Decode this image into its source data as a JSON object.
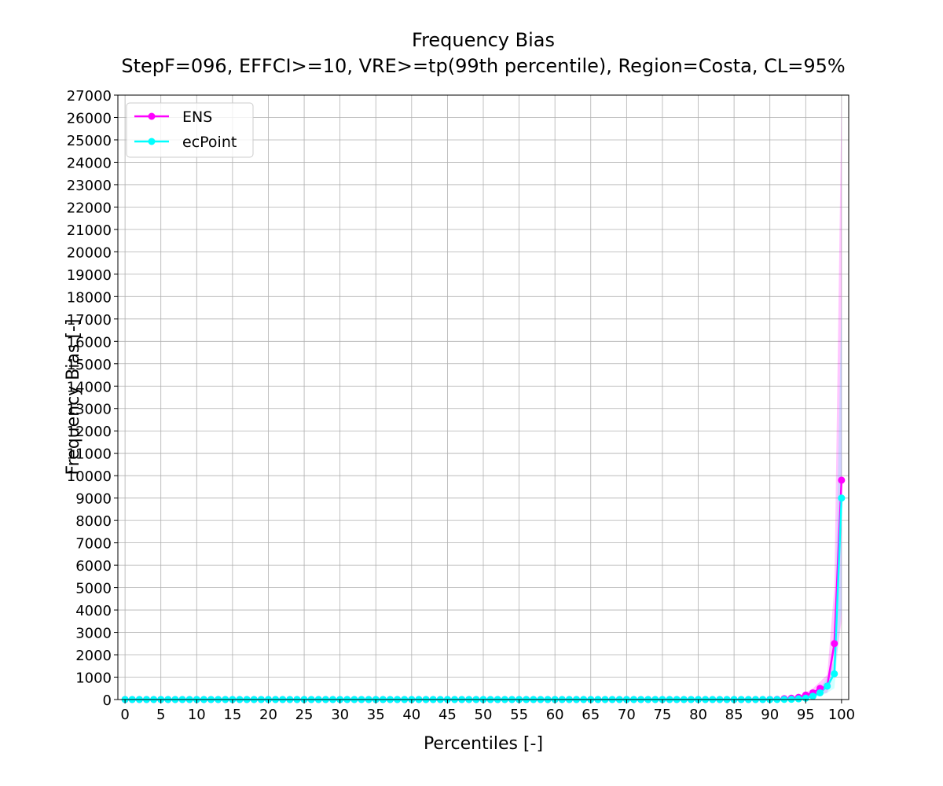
{
  "chart_data": {
    "type": "line",
    "title": "Frequency Bias",
    "subtitle": "StepF=096, EFFCI>=10, VRE>=tp(99th percentile), Region=Costa, CL=95%",
    "xlabel": "Percentiles [-]",
    "ylabel": "Frequency Bias [-]",
    "xlim": [
      -1,
      101
    ],
    "ylim": [
      0,
      27000
    ],
    "x_ticks": [
      0,
      5,
      10,
      15,
      20,
      25,
      30,
      35,
      40,
      45,
      50,
      55,
      60,
      65,
      70,
      75,
      80,
      85,
      90,
      95,
      100
    ],
    "y_ticks": [
      0,
      1000,
      2000,
      3000,
      4000,
      5000,
      6000,
      7000,
      8000,
      9000,
      10000,
      11000,
      12000,
      13000,
      14000,
      15000,
      16000,
      17000,
      18000,
      19000,
      20000,
      21000,
      22000,
      23000,
      24000,
      25000,
      26000,
      27000
    ],
    "grid": true,
    "legend_position": "top-left",
    "x": [
      0,
      1,
      2,
      3,
      4,
      5,
      6,
      7,
      8,
      9,
      10,
      11,
      12,
      13,
      14,
      15,
      16,
      17,
      18,
      19,
      20,
      21,
      22,
      23,
      24,
      25,
      26,
      27,
      28,
      29,
      30,
      31,
      32,
      33,
      34,
      35,
      36,
      37,
      38,
      39,
      40,
      41,
      42,
      43,
      44,
      45,
      46,
      47,
      48,
      49,
      50,
      51,
      52,
      53,
      54,
      55,
      56,
      57,
      58,
      59,
      60,
      61,
      62,
      63,
      64,
      65,
      66,
      67,
      68,
      69,
      70,
      71,
      72,
      73,
      74,
      75,
      76,
      77,
      78,
      79,
      80,
      81,
      82,
      83,
      84,
      85,
      86,
      87,
      88,
      89,
      90,
      91,
      92,
      93,
      94,
      95,
      96,
      97,
      98,
      99,
      100
    ],
    "series": [
      {
        "name": "ENS",
        "color": "#ff00ff",
        "marker": "circle",
        "values": [
          1,
          1,
          1,
          1,
          1,
          1,
          1,
          1,
          1,
          1,
          1,
          1,
          1,
          1,
          1,
          1,
          1,
          1,
          1,
          1,
          1,
          1,
          1,
          1,
          1,
          1,
          1,
          1,
          1,
          1,
          1,
          1,
          1,
          1,
          1,
          1,
          1,
          1,
          1,
          1,
          1,
          1,
          1,
          1,
          1,
          1,
          1,
          1,
          1,
          1,
          1,
          1,
          1,
          1,
          1,
          1,
          1,
          1,
          1,
          1,
          1,
          1,
          1,
          1,
          1,
          1,
          1,
          1,
          1,
          1,
          1,
          1,
          1,
          1,
          1,
          1,
          1,
          1,
          1,
          1,
          1,
          1,
          1,
          1,
          1,
          1,
          1,
          1,
          1,
          2,
          5,
          10,
          40,
          60,
          100,
          200,
          300,
          500,
          600,
          2500,
          9800
        ],
        "ci_lower": [
          1,
          1,
          1,
          1,
          1,
          1,
          1,
          1,
          1,
          1,
          1,
          1,
          1,
          1,
          1,
          1,
          1,
          1,
          1,
          1,
          1,
          1,
          1,
          1,
          1,
          1,
          1,
          1,
          1,
          1,
          1,
          1,
          1,
          1,
          1,
          1,
          1,
          1,
          1,
          1,
          1,
          1,
          1,
          1,
          1,
          1,
          1,
          1,
          1,
          1,
          1,
          1,
          1,
          1,
          1,
          1,
          1,
          1,
          1,
          1,
          1,
          1,
          1,
          1,
          1,
          1,
          1,
          1,
          1,
          1,
          1,
          1,
          1,
          1,
          1,
          1,
          1,
          1,
          1,
          1,
          1,
          1,
          1,
          1,
          1,
          1,
          1,
          1,
          1,
          1,
          2,
          5,
          20,
          30,
          50,
          100,
          150,
          250,
          300,
          1200,
          3500
        ],
        "ci_upper": [
          1,
          1,
          1,
          1,
          1,
          1,
          1,
          1,
          1,
          1,
          1,
          1,
          1,
          1,
          1,
          1,
          1,
          1,
          1,
          1,
          1,
          1,
          1,
          1,
          1,
          1,
          1,
          1,
          1,
          1,
          1,
          1,
          1,
          1,
          1,
          1,
          1,
          1,
          1,
          1,
          1,
          1,
          1,
          1,
          1,
          1,
          1,
          1,
          1,
          1,
          1,
          1,
          1,
          1,
          1,
          1,
          1,
          1,
          1,
          1,
          1,
          1,
          1,
          1,
          1,
          1,
          1,
          1,
          1,
          1,
          1,
          1,
          1,
          1,
          1,
          1,
          1,
          1,
          1,
          1,
          1,
          1,
          1,
          1,
          1,
          1,
          1,
          1,
          1,
          3,
          8,
          15,
          70,
          100,
          160,
          320,
          500,
          800,
          1100,
          5000,
          27000
        ]
      },
      {
        "name": "ecPoint",
        "color": "#00ffff",
        "marker": "circle",
        "values": [
          1,
          1,
          1,
          1,
          1,
          1,
          1,
          1,
          1,
          1,
          1,
          1,
          1,
          1,
          1,
          1,
          1,
          1,
          1,
          1,
          1,
          1,
          1,
          1,
          1,
          1,
          1,
          1,
          1,
          1,
          1,
          1,
          1,
          1,
          1,
          1,
          1,
          1,
          1,
          1,
          1,
          1,
          1,
          1,
          1,
          1,
          1,
          1,
          1,
          1,
          1,
          1,
          1,
          1,
          1,
          1,
          1,
          1,
          1,
          1,
          1,
          1,
          1,
          1,
          1,
          1,
          1,
          1,
          1,
          1,
          1,
          1,
          1,
          1,
          1,
          1,
          1,
          1,
          1,
          1,
          1,
          1,
          1,
          1,
          1,
          1,
          1,
          1,
          1,
          1,
          1,
          2,
          5,
          10,
          30,
          60,
          150,
          300,
          600,
          1150,
          9000
        ],
        "ci_lower": [
          1,
          1,
          1,
          1,
          1,
          1,
          1,
          1,
          1,
          1,
          1,
          1,
          1,
          1,
          1,
          1,
          1,
          1,
          1,
          1,
          1,
          1,
          1,
          1,
          1,
          1,
          1,
          1,
          1,
          1,
          1,
          1,
          1,
          1,
          1,
          1,
          1,
          1,
          1,
          1,
          1,
          1,
          1,
          1,
          1,
          1,
          1,
          1,
          1,
          1,
          1,
          1,
          1,
          1,
          1,
          1,
          1,
          1,
          1,
          1,
          1,
          1,
          1,
          1,
          1,
          1,
          1,
          1,
          1,
          1,
          1,
          1,
          1,
          1,
          1,
          1,
          1,
          1,
          1,
          1,
          1,
          1,
          1,
          1,
          1,
          1,
          1,
          1,
          1,
          1,
          1,
          1,
          3,
          6,
          15,
          30,
          80,
          150,
          300,
          500,
          4000
        ],
        "ci_upper": [
          1,
          1,
          1,
          1,
          1,
          1,
          1,
          1,
          1,
          1,
          1,
          1,
          1,
          1,
          1,
          1,
          1,
          1,
          1,
          1,
          1,
          1,
          1,
          1,
          1,
          1,
          1,
          1,
          1,
          1,
          1,
          1,
          1,
          1,
          1,
          1,
          1,
          1,
          1,
          1,
          1,
          1,
          1,
          1,
          1,
          1,
          1,
          1,
          1,
          1,
          1,
          1,
          1,
          1,
          1,
          1,
          1,
          1,
          1,
          1,
          1,
          1,
          1,
          1,
          1,
          1,
          1,
          1,
          1,
          1,
          1,
          1,
          1,
          1,
          1,
          1,
          1,
          1,
          1,
          1,
          1,
          1,
          1,
          1,
          1,
          1,
          1,
          1,
          1,
          1,
          2,
          4,
          10,
          20,
          50,
          100,
          250,
          500,
          1000,
          1800,
          18000
        ]
      }
    ]
  }
}
